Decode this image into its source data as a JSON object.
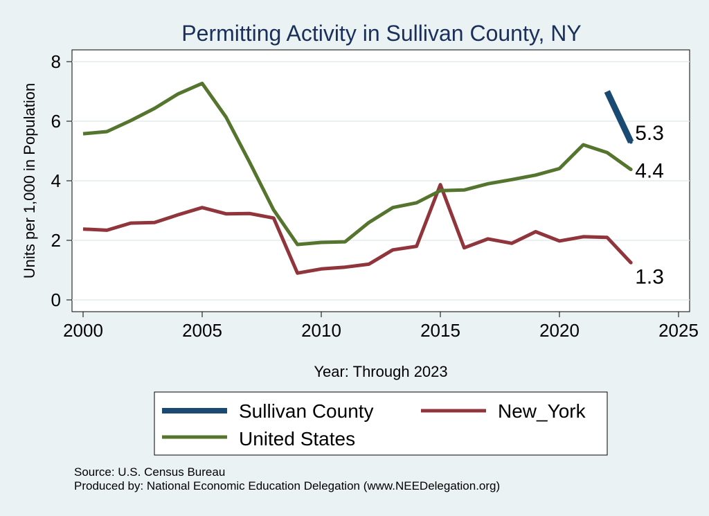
{
  "chart_data": {
    "type": "line",
    "title": "Permitting Activity in Sullivan County, NY",
    "xlabel": "Year: Through 2023",
    "ylabel": "Units per 1,000 in Population",
    "xlim": [
      2000,
      2025
    ],
    "ylim": [
      0,
      8
    ],
    "xticks": [
      "2000",
      "2005",
      "2010",
      "2015",
      "2020",
      "2025"
    ],
    "yticks": [
      "0",
      "2",
      "4",
      "6",
      "8"
    ],
    "grid": true,
    "legend_position": "bottom",
    "series": [
      {
        "name": "Sullivan County",
        "color": "#1a4a72",
        "x": [
          2022,
          2023
        ],
        "values": [
          7.0,
          5.3
        ],
        "end_label": "5.3"
      },
      {
        "name": "New_York",
        "color": "#90353b",
        "x": [
          2000,
          2001,
          2002,
          2003,
          2004,
          2005,
          2006,
          2007,
          2008,
          2009,
          2010,
          2011,
          2012,
          2013,
          2014,
          2015,
          2016,
          2017,
          2018,
          2019,
          2020,
          2021,
          2022,
          2023
        ],
        "values": [
          2.38,
          2.34,
          2.58,
          2.6,
          2.86,
          3.1,
          2.89,
          2.9,
          2.75,
          0.9,
          1.04,
          1.1,
          1.2,
          1.68,
          1.8,
          3.87,
          1.75,
          2.05,
          1.9,
          2.29,
          1.98,
          2.12,
          2.1,
          1.25
        ],
        "end_label": "1.3"
      },
      {
        "name": "United States",
        "color": "#55752f",
        "x": [
          2000,
          2001,
          2002,
          2003,
          2004,
          2005,
          2006,
          2007,
          2008,
          2009,
          2010,
          2011,
          2012,
          2013,
          2014,
          2015,
          2016,
          2017,
          2018,
          2019,
          2020,
          2021,
          2022,
          2023
        ],
        "values": [
          5.58,
          5.65,
          6.02,
          6.43,
          6.92,
          7.27,
          6.14,
          4.61,
          3.02,
          1.86,
          1.93,
          1.95,
          2.6,
          3.1,
          3.26,
          3.67,
          3.69,
          3.9,
          4.04,
          4.19,
          4.41,
          5.21,
          4.95,
          4.38
        ],
        "end_label": "4.4"
      }
    ]
  },
  "legend_items": [
    "Sullivan County",
    "New_York",
    "United States"
  ],
  "source_line": "Source: U.S. Census Bureau",
  "produced_line": "Produced by: National Economic Education Delegation (www.NEEDelegation.org)"
}
